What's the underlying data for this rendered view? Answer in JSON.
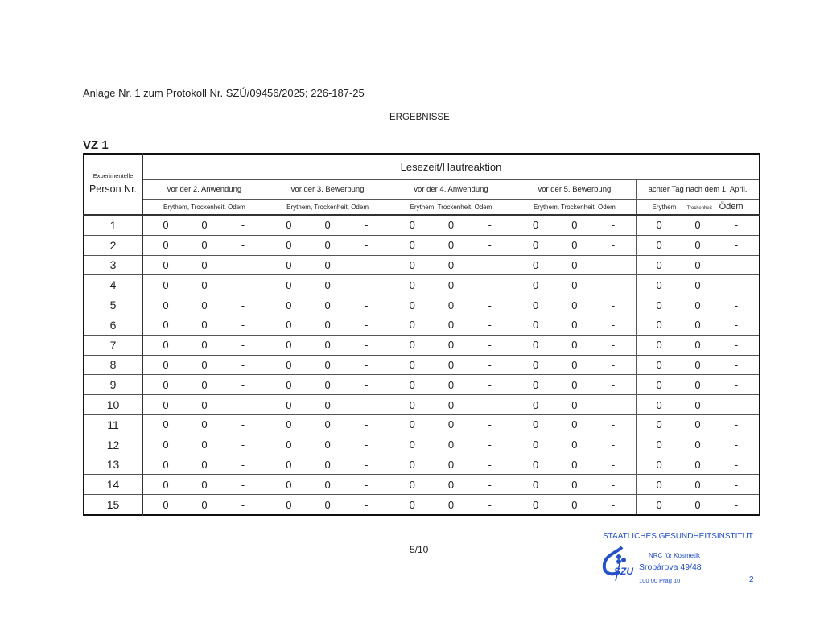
{
  "header": {
    "annex": "Anlage Nr. 1 zum Protokoll Nr. SZÚ/09456/2025; 226-187-25",
    "title": "ERGEBNISSE",
    "section": "VZ 1"
  },
  "table": {
    "person_label_top": "Experimentelle",
    "person_label": "Person Nr.",
    "main_header": "Lesezeit/Hautreaktion",
    "groups": [
      {
        "label": "vor der 2. Anwendung",
        "sub": "Erythem, Trockenheit, Ödem"
      },
      {
        "label": "vor der 3. Bewerbung",
        "sub": "Erythem, Trockenheit, Ödem"
      },
      {
        "label": "vor der 4. Anwendung",
        "sub": "Erythem, Trockenheit, Ödem"
      },
      {
        "label": "vor der 5. Bewerbung",
        "sub": "Erythem, Trockenheit, Ödem"
      },
      {
        "label": "achter Tag nach dem 1. April.",
        "sub_parts": [
          "Erythem",
          "Trockenheit",
          "Ödem"
        ]
      }
    ],
    "rows": [
      {
        "person": "1",
        "values": [
          "0",
          "0",
          "-",
          "0",
          "0",
          "-",
          "0",
          "0",
          "-",
          "0",
          "0",
          "-",
          "0",
          "0",
          "-"
        ]
      },
      {
        "person": "2",
        "values": [
          "0",
          "0",
          "-",
          "0",
          "0",
          "-",
          "0",
          "0",
          "-",
          "0",
          "0",
          "-",
          "0",
          "0",
          "-"
        ]
      },
      {
        "person": "3",
        "values": [
          "0",
          "0",
          "-",
          "0",
          "0",
          "-",
          "0",
          "0",
          "-",
          "0",
          "0",
          "-",
          "0",
          "0",
          "-"
        ]
      },
      {
        "person": "4",
        "values": [
          "0",
          "0",
          "-",
          "0",
          "0",
          "-",
          "0",
          "0",
          "-",
          "0",
          "0",
          "-",
          "0",
          "0",
          "-"
        ]
      },
      {
        "person": "5",
        "values": [
          "0",
          "0",
          "-",
          "0",
          "0",
          "-",
          "0",
          "0",
          "-",
          "0",
          "0",
          "-",
          "0",
          "0",
          "-"
        ]
      },
      {
        "person": "6",
        "values": [
          "0",
          "0",
          "-",
          "0",
          "0",
          "-",
          "0",
          "0",
          "-",
          "0",
          "0",
          "-",
          "0",
          "0",
          "-"
        ]
      },
      {
        "person": "7",
        "values": [
          "0",
          "0",
          "-",
          "0",
          "0",
          "-",
          "0",
          "0",
          "-",
          "0",
          "0",
          "-",
          "0",
          "0",
          "-"
        ]
      },
      {
        "person": "8",
        "values": [
          "0",
          "0",
          "-",
          "0",
          "0",
          "-",
          "0",
          "0",
          "-",
          "0",
          "0",
          "-",
          "0",
          "0",
          "-"
        ]
      },
      {
        "person": "9",
        "values": [
          "0",
          "0",
          "-",
          "0",
          "0",
          "-",
          "0",
          "0",
          "-",
          "0",
          "0",
          "-",
          "0",
          "0",
          "-"
        ]
      },
      {
        "person": "10",
        "values": [
          "0",
          "0",
          "-",
          "0",
          "0",
          "-",
          "0",
          "0",
          "-",
          "0",
          "0",
          "-",
          "0",
          "0",
          "-"
        ]
      },
      {
        "person": "11",
        "values": [
          "0",
          "0",
          "-",
          "0",
          "0",
          "-",
          "0",
          "0",
          "-",
          "0",
          "0",
          "-",
          "0",
          "0",
          "-"
        ]
      },
      {
        "person": "12",
        "values": [
          "0",
          "0",
          "-",
          "0",
          "0",
          "-",
          "0",
          "0",
          "-",
          "0",
          "0",
          "-",
          "0",
          "0",
          "-"
        ]
      },
      {
        "person": "13",
        "values": [
          "0",
          "0",
          "-",
          "0",
          "0",
          "-",
          "0",
          "0",
          "-",
          "0",
          "0",
          "-",
          "0",
          "0",
          "-"
        ]
      },
      {
        "person": "14",
        "values": [
          "0",
          "0",
          "-",
          "0",
          "0",
          "-",
          "0",
          "0",
          "-",
          "0",
          "0",
          "-",
          "0",
          "0",
          "-"
        ]
      },
      {
        "person": "15",
        "values": [
          "0",
          "0",
          "-",
          "0",
          "0",
          "-",
          "0",
          "0",
          "-",
          "0",
          "0",
          "-",
          "0",
          "0",
          "-"
        ]
      }
    ]
  },
  "footer": {
    "page": "5/10",
    "stamp": {
      "institute": "STAATLICHES GESUNDHEITSINSTITUT",
      "logo_text": "SZÚ",
      "dept": "NRC für Kosmetik",
      "street": "Srobárova 49/48",
      "city": "100 00 Prag 10",
      "number": "2",
      "color": "#2451c8"
    }
  }
}
